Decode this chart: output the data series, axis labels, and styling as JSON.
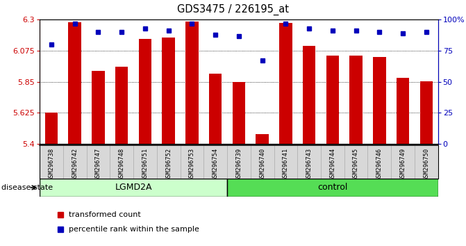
{
  "title": "GDS3475 / 226195_at",
  "samples": [
    "GSM296738",
    "GSM296742",
    "GSM296747",
    "GSM296748",
    "GSM296751",
    "GSM296752",
    "GSM296753",
    "GSM296754",
    "GSM296739",
    "GSM296740",
    "GSM296741",
    "GSM296743",
    "GSM296744",
    "GSM296745",
    "GSM296746",
    "GSM296749",
    "GSM296750"
  ],
  "bar_values": [
    5.625,
    6.28,
    5.93,
    5.96,
    6.16,
    6.17,
    6.285,
    5.91,
    5.85,
    5.47,
    6.275,
    6.11,
    6.04,
    6.04,
    6.03,
    5.88,
    5.855
  ],
  "percentile_values": [
    80,
    97,
    90,
    90,
    93,
    91,
    97,
    88,
    87,
    67,
    97,
    93,
    91,
    91,
    90,
    89,
    90
  ],
  "lgmd2a_count": 8,
  "group_labels": [
    "LGMD2A",
    "control"
  ],
  "group_colors": [
    "#ccffcc",
    "#55dd55"
  ],
  "ylim_left": [
    5.4,
    6.3
  ],
  "yticks_left": [
    5.4,
    5.625,
    5.85,
    6.075,
    6.3
  ],
  "ytick_right_vals": [
    0,
    25,
    50,
    75,
    100
  ],
  "ytick_right_labels": [
    "0",
    "25",
    "50",
    "75",
    "100%"
  ],
  "bar_color": "#cc0000",
  "percentile_color": "#0000bb",
  "bar_width": 0.55,
  "label_bar": "transformed count",
  "label_percentile": "percentile rank within the sample",
  "disease_state_label": "disease state"
}
